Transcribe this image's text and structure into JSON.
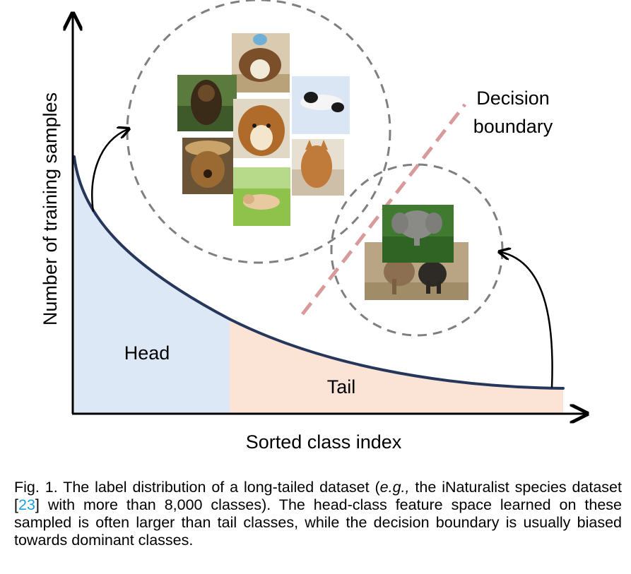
{
  "diagram": {
    "y_axis_label": "Number of training samples",
    "x_axis_label": "Sorted class index",
    "head_label": "Head",
    "tail_label": "Tail",
    "decision_boundary_label": [
      "Decision",
      "boundary"
    ],
    "head_cluster": {
      "images": [
        "dog-icon",
        "dog-icon",
        "dog-icon",
        "dog-icon",
        "dog-icon",
        "dog-icon",
        "dog-icon",
        "dog-icon"
      ]
    },
    "tail_cluster": {
      "images": [
        "elephant-icon",
        "elephant-icon"
      ]
    },
    "colors": {
      "head_fill": "#dce8f5",
      "tail_fill": "#fbe3d6",
      "curve": "#27375b",
      "circle_dash": "#7f7f7f",
      "boundary_dash": "#d89a9a"
    }
  },
  "caption": {
    "fig_label": "Fig. 1.",
    "text_1": "The label distribution of a long-tailed dataset (",
    "eg": "e.g.,",
    "text_2": " the iNaturalist species dataset [",
    "ref": "23",
    "text_3": "] with more than 8,000 classes). The head-class feature space learned on these sampled is often larger than tail classes, while the decision boundary is usually biased towards dominant classes."
  }
}
